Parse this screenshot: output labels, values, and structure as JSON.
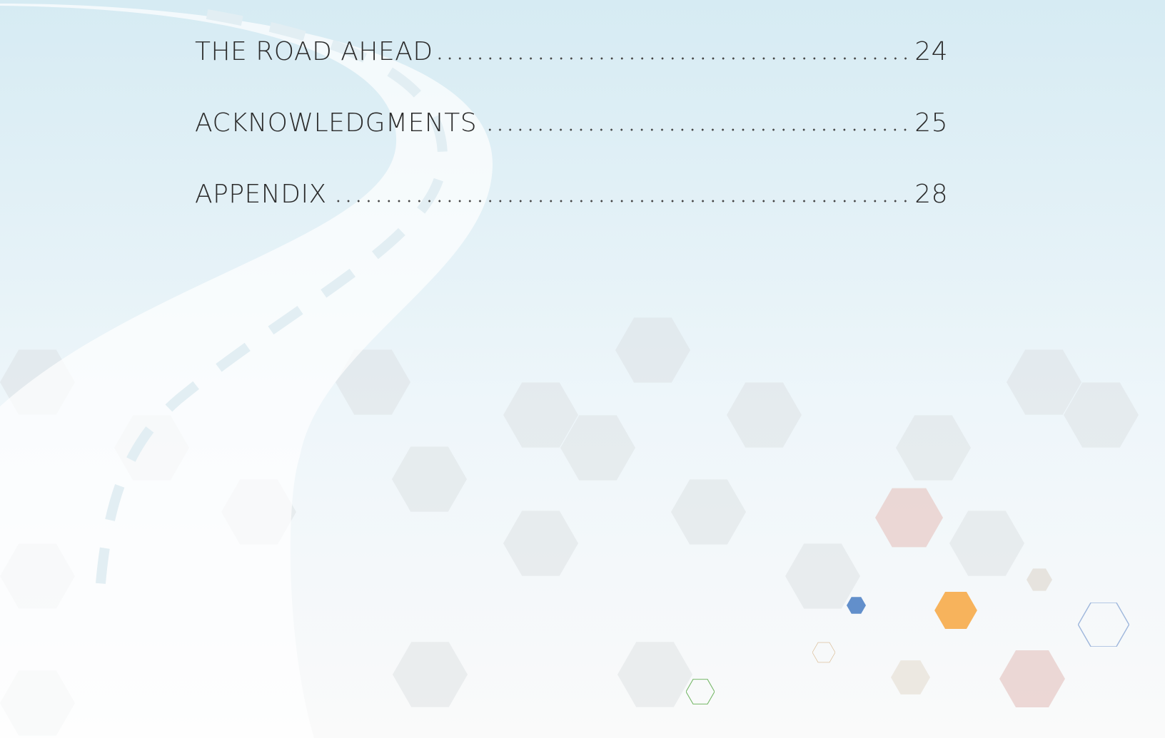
{
  "toc": {
    "entries": [
      {
        "title": "THE ROAD AHEAD",
        "page": "24"
      },
      {
        "title": "ACKNOWLEDGMENTS",
        "page": "25"
      },
      {
        "title": "APPENDIX",
        "page": "28"
      }
    ]
  }
}
